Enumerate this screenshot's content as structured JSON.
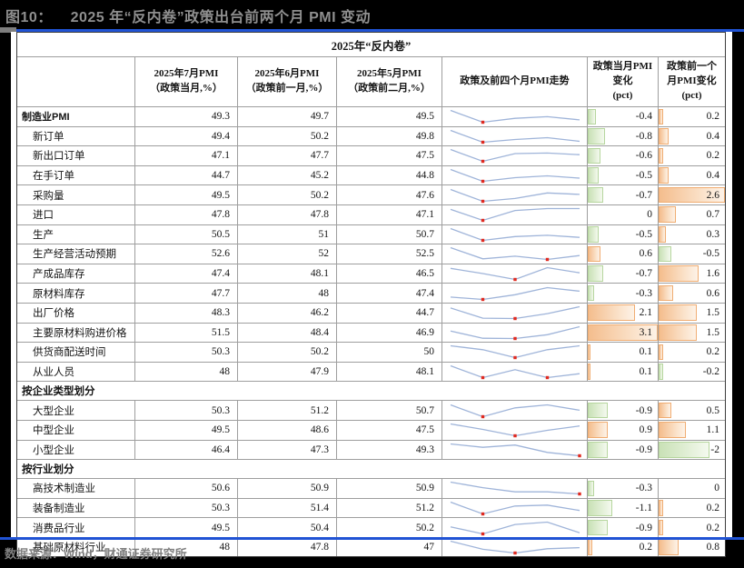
{
  "title": "图10：    2025 年“反内卷”政策出台前两个月 PMI 变动",
  "footer": "数据来源：Wind，财通证券研究所",
  "style": {
    "accent_blue": "#2053d4",
    "sparkline_color": "#9fb4d9",
    "marker_color": "#e02a20",
    "bar_positive": "#f4bd8d",
    "bar_negative": "#c9e1b6"
  },
  "table": {
    "band": "2025年“反内卷”",
    "headers": [
      "",
      "2025年7月PMI\n（政策当月,%）",
      "2025年6月PMI\n（政策前一月,%）",
      "2025年5月PMI\n（政策前二月,%）",
      "政策及前四个月PMI走势",
      "政策当月PMI\n变化\n(pct)",
      "政策前一个\n月PMI变化\n(pct)"
    ],
    "bar_scale": {
      "cur": 3.1,
      "prev": 2.6
    },
    "rows": [
      {
        "type": "data",
        "label": "制造业PMI",
        "bold": true,
        "jul": "49.3",
        "jun": "49.7",
        "may": "49.5",
        "trend": [
          50.5,
          49.0,
          49.5,
          49.7,
          49.3
        ],
        "chg_cur": "-0.4",
        "chg_prev": "0.2"
      },
      {
        "type": "data",
        "label": "新订单",
        "bold": false,
        "jul": "49.4",
        "jun": "50.2",
        "may": "49.8",
        "trend": [
          51.8,
          49.2,
          49.8,
          50.2,
          49.4
        ],
        "chg_cur": "-0.8",
        "chg_prev": "0.4"
      },
      {
        "type": "data",
        "label": "新出口订单",
        "bold": false,
        "jul": "47.1",
        "jun": "47.7",
        "may": "47.5",
        "trend": [
          49.0,
          44.7,
          47.5,
          47.7,
          47.1
        ],
        "chg_cur": "-0.6",
        "chg_prev": "0.2"
      },
      {
        "type": "data",
        "label": "在手订单",
        "bold": false,
        "jul": "44.7",
        "jun": "45.2",
        "may": "44.8",
        "trend": [
          46.6,
          44.0,
          44.8,
          45.2,
          44.7
        ],
        "chg_cur": "-0.5",
        "chg_prev": "0.4"
      },
      {
        "type": "data",
        "label": "采购量",
        "bold": false,
        "jul": "49.5",
        "jun": "50.2",
        "may": "47.6",
        "trend": [
          51.8,
          46.3,
          47.6,
          50.2,
          49.5
        ],
        "chg_cur": "-0.7",
        "chg_prev": "2.6"
      },
      {
        "type": "data",
        "label": "进口",
        "bold": false,
        "jul": "47.8",
        "jun": "47.8",
        "may": "47.1",
        "trend": [
          47.5,
          43.4,
          47.1,
          47.8,
          47.8
        ],
        "chg_cur": "0",
        "chg_prev": "0.7"
      },
      {
        "type": "data",
        "label": "生产",
        "bold": false,
        "jul": "50.5",
        "jun": "51",
        "may": "50.7",
        "trend": [
          52.6,
          49.8,
          50.7,
          51.0,
          50.5
        ],
        "chg_cur": "-0.5",
        "chg_prev": "0.3"
      },
      {
        "type": "data",
        "label": "生产经营活动预期",
        "bold": false,
        "jul": "52.6",
        "jun": "52",
        "may": "52.5",
        "trend": [
          53.8,
          52.1,
          52.5,
          52.0,
          52.6
        ],
        "chg_cur": "0.6",
        "chg_prev": "-0.5"
      },
      {
        "type": "data",
        "label": "产成品库存",
        "bold": false,
        "jul": "47.4",
        "jun": "48.1",
        "may": "46.5",
        "trend": [
          48.0,
          47.3,
          46.5,
          48.1,
          47.4
        ],
        "chg_cur": "-0.7",
        "chg_prev": "1.6"
      },
      {
        "type": "data",
        "label": "原材料库存",
        "bold": false,
        "jul": "47.7",
        "jun": "48",
        "may": "47.4",
        "trend": [
          47.2,
          47.0,
          47.4,
          48.0,
          47.7
        ],
        "chg_cur": "-0.3",
        "chg_prev": "0.6"
      },
      {
        "type": "data",
        "label": "出厂价格",
        "bold": false,
        "jul": "48.3",
        "jun": "46.2",
        "may": "44.7",
        "trend": [
          47.9,
          44.8,
          44.7,
          46.2,
          48.3
        ],
        "chg_cur": "2.1",
        "chg_prev": "1.5"
      },
      {
        "type": "data",
        "label": "主要原材料购进价格",
        "bold": false,
        "jul": "51.5",
        "jun": "48.4",
        "may": "46.9",
        "trend": [
          49.8,
          47.0,
          46.9,
          48.4,
          51.5
        ],
        "chg_cur": "3.1",
        "chg_prev": "1.5"
      },
      {
        "type": "data",
        "label": "供货商配送时间",
        "bold": false,
        "jul": "50.3",
        "jun": "50.2",
        "may": "50",
        "trend": [
          50.3,
          50.2,
          50.0,
          50.2,
          50.3
        ],
        "chg_cur": "0.1",
        "chg_prev": "0.2"
      },
      {
        "type": "data",
        "label": "从业人员",
        "bold": false,
        "jul": "48",
        "jun": "47.9",
        "may": "48.1",
        "trend": [
          48.2,
          47.9,
          48.1,
          47.9,
          48.0
        ],
        "chg_cur": "0.1",
        "chg_prev": "-0.2"
      },
      {
        "type": "section",
        "label": "按企业类型划分"
      },
      {
        "type": "data",
        "label": "大型企业",
        "bold": false,
        "jul": "50.3",
        "jun": "51.2",
        "may": "50.7",
        "trend": [
          51.2,
          49.2,
          50.7,
          51.2,
          50.3
        ],
        "chg_cur": "-0.9",
        "chg_prev": "0.5"
      },
      {
        "type": "data",
        "label": "中型企业",
        "bold": false,
        "jul": "49.5",
        "jun": "48.6",
        "may": "47.5",
        "trend": [
          49.9,
          48.8,
          47.5,
          48.6,
          49.5
        ],
        "chg_cur": "0.9",
        "chg_prev": "1.1"
      },
      {
        "type": "data",
        "label": "小型企业",
        "bold": false,
        "jul": "46.4",
        "jun": "47.3",
        "may": "49.3",
        "trend": [
          49.6,
          48.7,
          49.3,
          47.3,
          46.4
        ],
        "chg_cur": "-0.9",
        "chg_prev": "-2"
      },
      {
        "type": "section",
        "label": "按行业划分"
      },
      {
        "type": "data",
        "label": "高技术制造业",
        "bold": false,
        "jul": "50.6",
        "jun": "50.9",
        "may": "50.9",
        "trend": [
          52.3,
          51.5,
          50.9,
          50.9,
          50.6
        ],
        "chg_cur": "-0.3",
        "chg_prev": "0"
      },
      {
        "type": "data",
        "label": "装备制造业",
        "bold": false,
        "jul": "50.3",
        "jun": "51.4",
        "may": "51.2",
        "trend": [
          52.0,
          49.6,
          51.2,
          51.4,
          50.3
        ],
        "chg_cur": "-1.1",
        "chg_prev": "0.2"
      },
      {
        "type": "data",
        "label": "消费品行业",
        "bold": false,
        "jul": "49.5",
        "jun": "50.4",
        "may": "50.2",
        "trend": [
          50.0,
          49.4,
          50.2,
          50.4,
          49.5
        ],
        "chg_cur": "-0.9",
        "chg_prev": "0.2"
      },
      {
        "type": "data",
        "label": "基础原材料行业",
        "bold": false,
        "jul": "48",
        "jun": "47.8",
        "may": "47",
        "trend": [
          49.2,
          47.7,
          47.0,
          47.8,
          48.0
        ],
        "chg_cur": "0.2",
        "chg_prev": "0.8"
      }
    ]
  }
}
